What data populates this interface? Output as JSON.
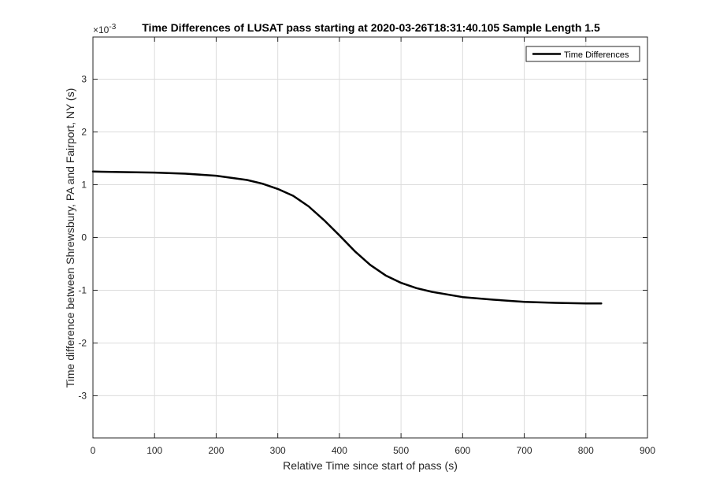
{
  "chart_data": {
    "type": "line",
    "title": "Time Differences of LUSAT pass starting at 2020-03-26T18:31:40.105 Sample Length 1.5",
    "xlabel": "Relative Time since start of pass (s)",
    "ylabel": "Time difference between Shrewsbury, PA and Fairport, NY (s)",
    "y_exponent_label": "×10",
    "y_exponent": "-3",
    "xlim": [
      0,
      900
    ],
    "ylim": [
      -0.0038,
      0.0038
    ],
    "x_ticks": [
      0,
      100,
      200,
      300,
      400,
      500,
      600,
      700,
      800,
      900
    ],
    "x_tick_labels": [
      "0",
      "100",
      "200",
      "300",
      "400",
      "500",
      "600",
      "700",
      "800",
      "900"
    ],
    "y_ticks": [
      -0.003,
      -0.002,
      -0.001,
      0,
      0.001,
      0.002,
      0.003
    ],
    "y_tick_labels": [
      "-3",
      "-2",
      "-1",
      "0",
      "1",
      "2",
      "3"
    ],
    "grid": true,
    "legend_position": "top-right",
    "series": [
      {
        "name": "Time Differences",
        "color": "#000000",
        "x": [
          0,
          50,
          100,
          150,
          200,
          250,
          275,
          300,
          325,
          350,
          375,
          400,
          425,
          450,
          475,
          500,
          525,
          550,
          600,
          650,
          700,
          750,
          800,
          825
        ],
        "y": [
          0.00125,
          0.00124,
          0.00123,
          0.00121,
          0.00117,
          0.00109,
          0.00102,
          0.00092,
          0.00079,
          0.00059,
          0.00033,
          4e-05,
          -0.00026,
          -0.00052,
          -0.00072,
          -0.00086,
          -0.00096,
          -0.00103,
          -0.00113,
          -0.00118,
          -0.00122,
          -0.00124,
          -0.00125,
          -0.00125
        ]
      }
    ]
  }
}
